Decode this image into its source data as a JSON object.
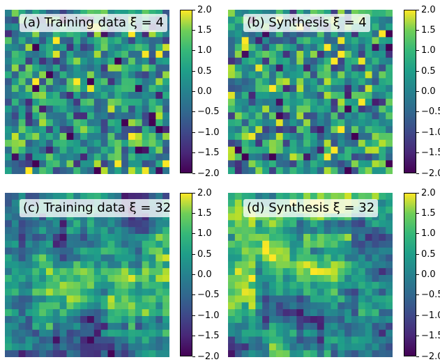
{
  "chart_data": [
    {
      "type": "heatmap",
      "title": "(a) Training data ξ = 4",
      "grid": [
        24,
        24
      ],
      "colormap": "viridis",
      "clim": [
        -2.0,
        2.0
      ],
      "colorbar_ticks": [
        "2.0",
        "1.5",
        "1.0",
        "0.5",
        "0.0",
        "−0.5",
        "−1.0",
        "−1.5",
        "−2.0"
      ],
      "correlation_length": 4
    },
    {
      "type": "heatmap",
      "title": "(b) Synthesis ξ = 4",
      "grid": [
        24,
        24
      ],
      "colormap": "viridis",
      "clim": [
        -2.0,
        2.0
      ],
      "colorbar_ticks": [
        "2.0",
        "1.5",
        "1.0",
        "0.5",
        "0.0",
        "−0.5",
        "−1.0",
        "−1.5",
        "−2.0"
      ],
      "correlation_length": 4
    },
    {
      "type": "heatmap",
      "title": "(c) Training data ξ = 32",
      "grid": [
        24,
        24
      ],
      "colormap": "viridis",
      "clim": [
        -2.0,
        2.0
      ],
      "colorbar_ticks": [
        "2.0",
        "1.5",
        "1.0",
        "0.5",
        "0.0",
        "−0.5",
        "−1.0",
        "−1.5",
        "−2.0"
      ],
      "correlation_length": 32
    },
    {
      "type": "heatmap",
      "title": "(d) Synthesis ξ = 32",
      "grid": [
        24,
        24
      ],
      "colormap": "viridis",
      "clim": [
        -2.0,
        2.0
      ],
      "colorbar_ticks": [
        "2.0",
        "1.5",
        "1.0",
        "0.5",
        "0.0",
        "−0.5",
        "−1.0",
        "−1.5",
        "−2.0"
      ],
      "correlation_length": 32
    }
  ]
}
